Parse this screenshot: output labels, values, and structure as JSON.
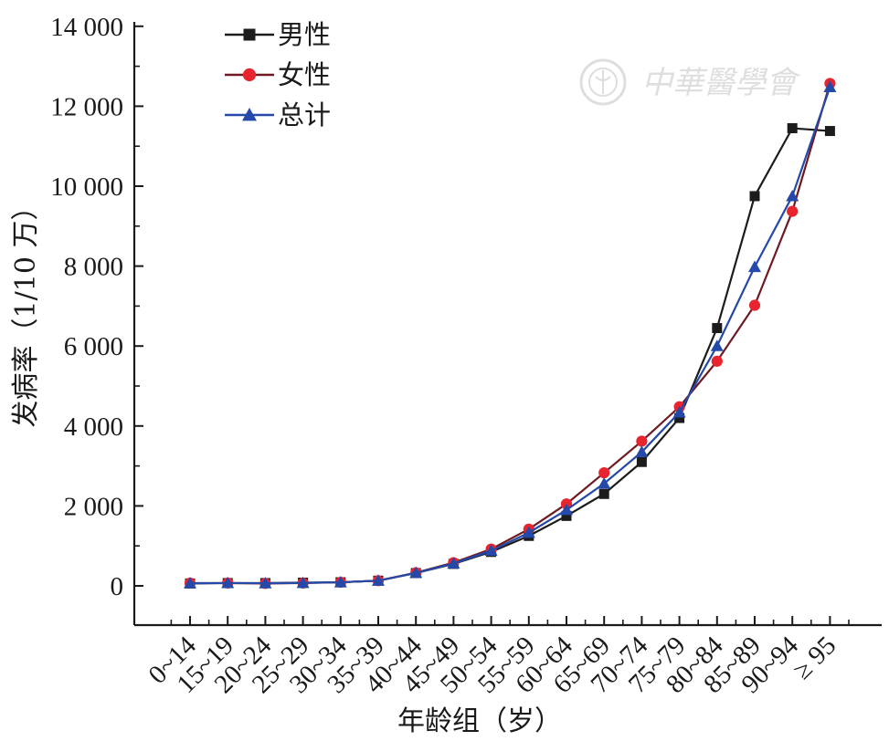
{
  "watermark": {
    "text": "中華醫學會"
  },
  "chart_data": {
    "type": "line",
    "xlabel": "年龄组（岁）",
    "ylabel": "发病率（1/10 万）",
    "categories": [
      "0~14",
      "15~19",
      "20~24",
      "25~29",
      "30~34",
      "35~39",
      "40~44",
      "45~49",
      "50~54",
      "55~59",
      "60~64",
      "65~69",
      "70~74",
      "75~79",
      "80~84",
      "85~89",
      "90~94",
      "≥ 95"
    ],
    "ylim": [
      -1000,
      14000
    ],
    "yticks": [
      0,
      2000,
      4000,
      6000,
      8000,
      10000,
      12000,
      14000
    ],
    "ytick_labels": [
      "0",
      "2 000",
      "4 000",
      "6 000",
      "8 000",
      "10 000",
      "12 000",
      "14 000"
    ],
    "legend_position": "top-left",
    "series": [
      {
        "name": "男性",
        "color": "#1c1c1c",
        "marker": "square",
        "values": [
          60,
          70,
          70,
          80,
          90,
          130,
          320,
          550,
          850,
          1250,
          1750,
          2300,
          3100,
          4200,
          6450,
          9750,
          11450,
          11380
        ]
      },
      {
        "name": "女性",
        "color": "#e8242f",
        "line_color": "#6e1a22",
        "marker": "circle",
        "values": [
          70,
          70,
          60,
          70,
          90,
          130,
          330,
          580,
          920,
          1420,
          2050,
          2830,
          3620,
          4480,
          5620,
          7020,
          9370,
          12570
        ]
      },
      {
        "name": "总计",
        "color": "#2549a8",
        "marker": "triangle",
        "values": [
          65,
          70,
          65,
          75,
          90,
          130,
          325,
          560,
          880,
          1330,
          1900,
          2560,
          3350,
          4340,
          6000,
          7980,
          9750,
          12480
        ]
      }
    ]
  }
}
